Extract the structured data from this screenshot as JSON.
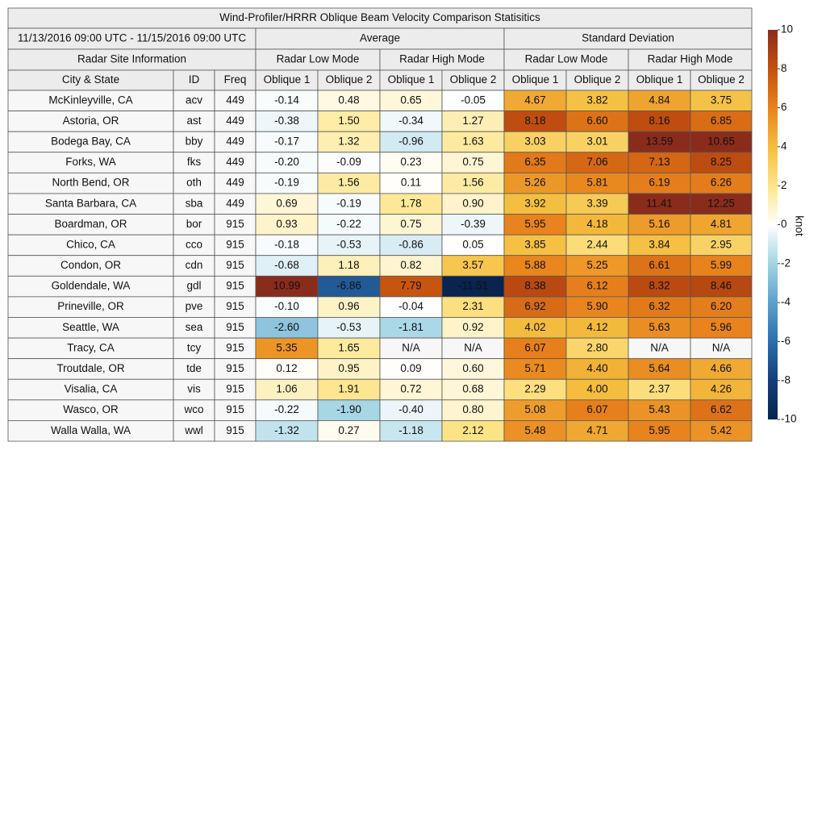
{
  "table": {
    "title": "Wind-Profiler/HRRR Oblique Beam Velocity Comparison Statisitics",
    "date_range": "11/13/2016 09:00 UTC - 11/15/2016 09:00 UTC",
    "site_info": "Radar Site Information",
    "groups": [
      {
        "label": "Average",
        "modes": [
          "Radar Low Mode",
          "Radar High Mode"
        ]
      },
      {
        "label": "Standard Deviation",
        "modes": [
          "Radar Low Mode",
          "Radar High Mode"
        ]
      }
    ],
    "columns": [
      "City & State",
      "ID",
      "Freq",
      "Oblique 1",
      "Oblique 2",
      "Oblique 1",
      "Oblique 2",
      "Oblique 1",
      "Oblique 2",
      "Oblique 1",
      "Oblique 2"
    ],
    "rows": [
      [
        "McKinleyville, CA",
        "acv",
        "449",
        "-0.14",
        "0.48",
        "0.65",
        "-0.05",
        "4.67",
        "3.82",
        "4.84",
        "3.75"
      ],
      [
        "Astoria, OR",
        "ast",
        "449",
        "-0.38",
        "1.50",
        "-0.34",
        "1.27",
        "8.18",
        "6.60",
        "8.16",
        "6.85"
      ],
      [
        "Bodega Bay, CA",
        "bby",
        "449",
        "-0.17",
        "1.32",
        "-0.96",
        "1.63",
        "3.03",
        "3.01",
        "13.59",
        "10.65"
      ],
      [
        "Forks, WA",
        "fks",
        "449",
        "-0.20",
        "-0.09",
        "0.23",
        "0.75",
        "6.35",
        "7.06",
        "7.13",
        "8.25"
      ],
      [
        "North Bend, OR",
        "oth",
        "449",
        "-0.19",
        "1.56",
        "0.11",
        "1.56",
        "5.26",
        "5.81",
        "6.19",
        "6.26"
      ],
      [
        "Santa Barbara, CA",
        "sba",
        "449",
        "0.69",
        "-0.19",
        "1.78",
        "0.90",
        "3.92",
        "3.39",
        "11.41",
        "12.25"
      ],
      [
        "Boardman, OR",
        "bor",
        "915",
        "0.93",
        "-0.22",
        "0.75",
        "-0.39",
        "5.95",
        "4.18",
        "5.16",
        "4.81"
      ],
      [
        "Chico, CA",
        "cco",
        "915",
        "-0.18",
        "-0.53",
        "-0.86",
        "0.05",
        "3.85",
        "2.44",
        "3.84",
        "2.95"
      ],
      [
        "Condon, OR",
        "cdn",
        "915",
        "-0.68",
        "1.18",
        "0.82",
        "3.57",
        "5.88",
        "5.25",
        "6.61",
        "5.99"
      ],
      [
        "Goldendale, WA",
        "gdl",
        "915",
        "10.99",
        "-6.86",
        "7.79",
        "-11.51",
        "8.38",
        "6.12",
        "8.32",
        "8.46"
      ],
      [
        "Prineville, OR",
        "pve",
        "915",
        "-0.10",
        "0.96",
        "-0.04",
        "2.31",
        "6.92",
        "5.90",
        "6.32",
        "6.20"
      ],
      [
        "Seattle, WA",
        "sea",
        "915",
        "-2.60",
        "-0.53",
        "-1.81",
        "0.92",
        "4.02",
        "4.12",
        "5.63",
        "5.96"
      ],
      [
        "Tracy, CA",
        "tcy",
        "915",
        "5.35",
        "1.65",
        "N/A",
        "N/A",
        "6.07",
        "2.80",
        "N/A",
        "N/A"
      ],
      [
        "Troutdale, OR",
        "tde",
        "915",
        "0.12",
        "0.95",
        "0.09",
        "0.60",
        "5.71",
        "4.40",
        "5.64",
        "4.66"
      ],
      [
        "Visalia, CA",
        "vis",
        "915",
        "1.06",
        "1.91",
        "0.72",
        "0.68",
        "2.29",
        "4.00",
        "2.37",
        "4.26"
      ],
      [
        "Wasco, OR",
        "wco",
        "915",
        "-0.22",
        "-1.90",
        "-0.40",
        "0.80",
        "5.08",
        "6.07",
        "5.43",
        "6.62"
      ],
      [
        "Walla Walla, WA",
        "wwl",
        "915",
        "-1.32",
        "0.27",
        "-1.18",
        "2.12",
        "5.48",
        "4.71",
        "5.95",
        "5.42"
      ]
    ]
  },
  "colorbar": {
    "label": "knot",
    "range": [
      -10,
      10
    ],
    "ticks": [
      10,
      8,
      6,
      4,
      2,
      0,
      -2,
      -4,
      -6,
      -8,
      -10
    ],
    "colors": [
      "#08244f",
      "#143f78",
      "#2b6fad",
      "#5ea0cc",
      "#a2d4e4",
      "#ffffff",
      "#fde58a",
      "#f4bd3e",
      "#e8821c",
      "#c4500e",
      "#8a2c1c"
    ]
  }
}
